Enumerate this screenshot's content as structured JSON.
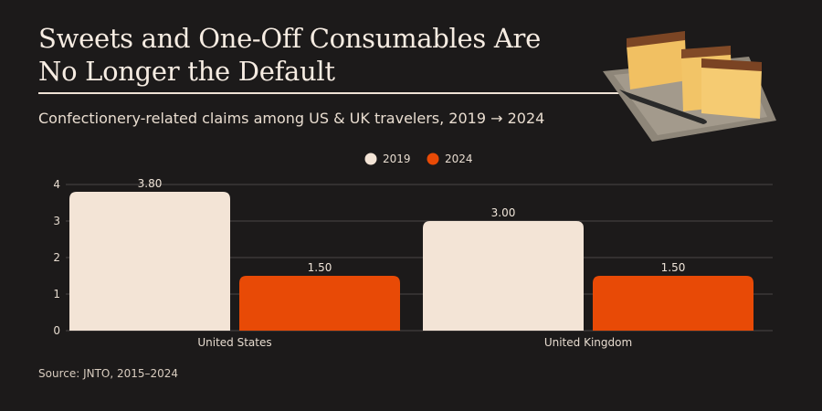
{
  "title": "Sweets and One-Off Consumables Are No Longer the Default",
  "subtitle": "Confectionery-related claims among US & UK travelers, 2019 → 2024",
  "source": "Source: JNTO, 2015–2024",
  "image": {
    "icon": "castella-cake-photo"
  },
  "colors": {
    "background": "#1c1a1a",
    "series_2019": "#f3e4d6",
    "series_2024": "#e84a06",
    "text": "#f3e8dc",
    "grid": "#4a4646"
  },
  "chart_data": {
    "type": "bar",
    "categories": [
      "United States",
      "United Kingdom"
    ],
    "series": [
      {
        "name": "2019",
        "values": [
          3.8,
          3.0
        ],
        "labels": [
          "3.80",
          "3.00"
        ],
        "color": "#f3e4d6"
      },
      {
        "name": "2024",
        "values": [
          1.5,
          1.5
        ],
        "labels": [
          "1.50",
          "1.50"
        ],
        "color": "#e84a06"
      }
    ],
    "yticks": [
      "0",
      "1",
      "2",
      "3",
      "4"
    ],
    "ylim": [
      0,
      4
    ],
    "grid": true,
    "legend": "top-center",
    "xlabel": "",
    "ylabel": ""
  }
}
